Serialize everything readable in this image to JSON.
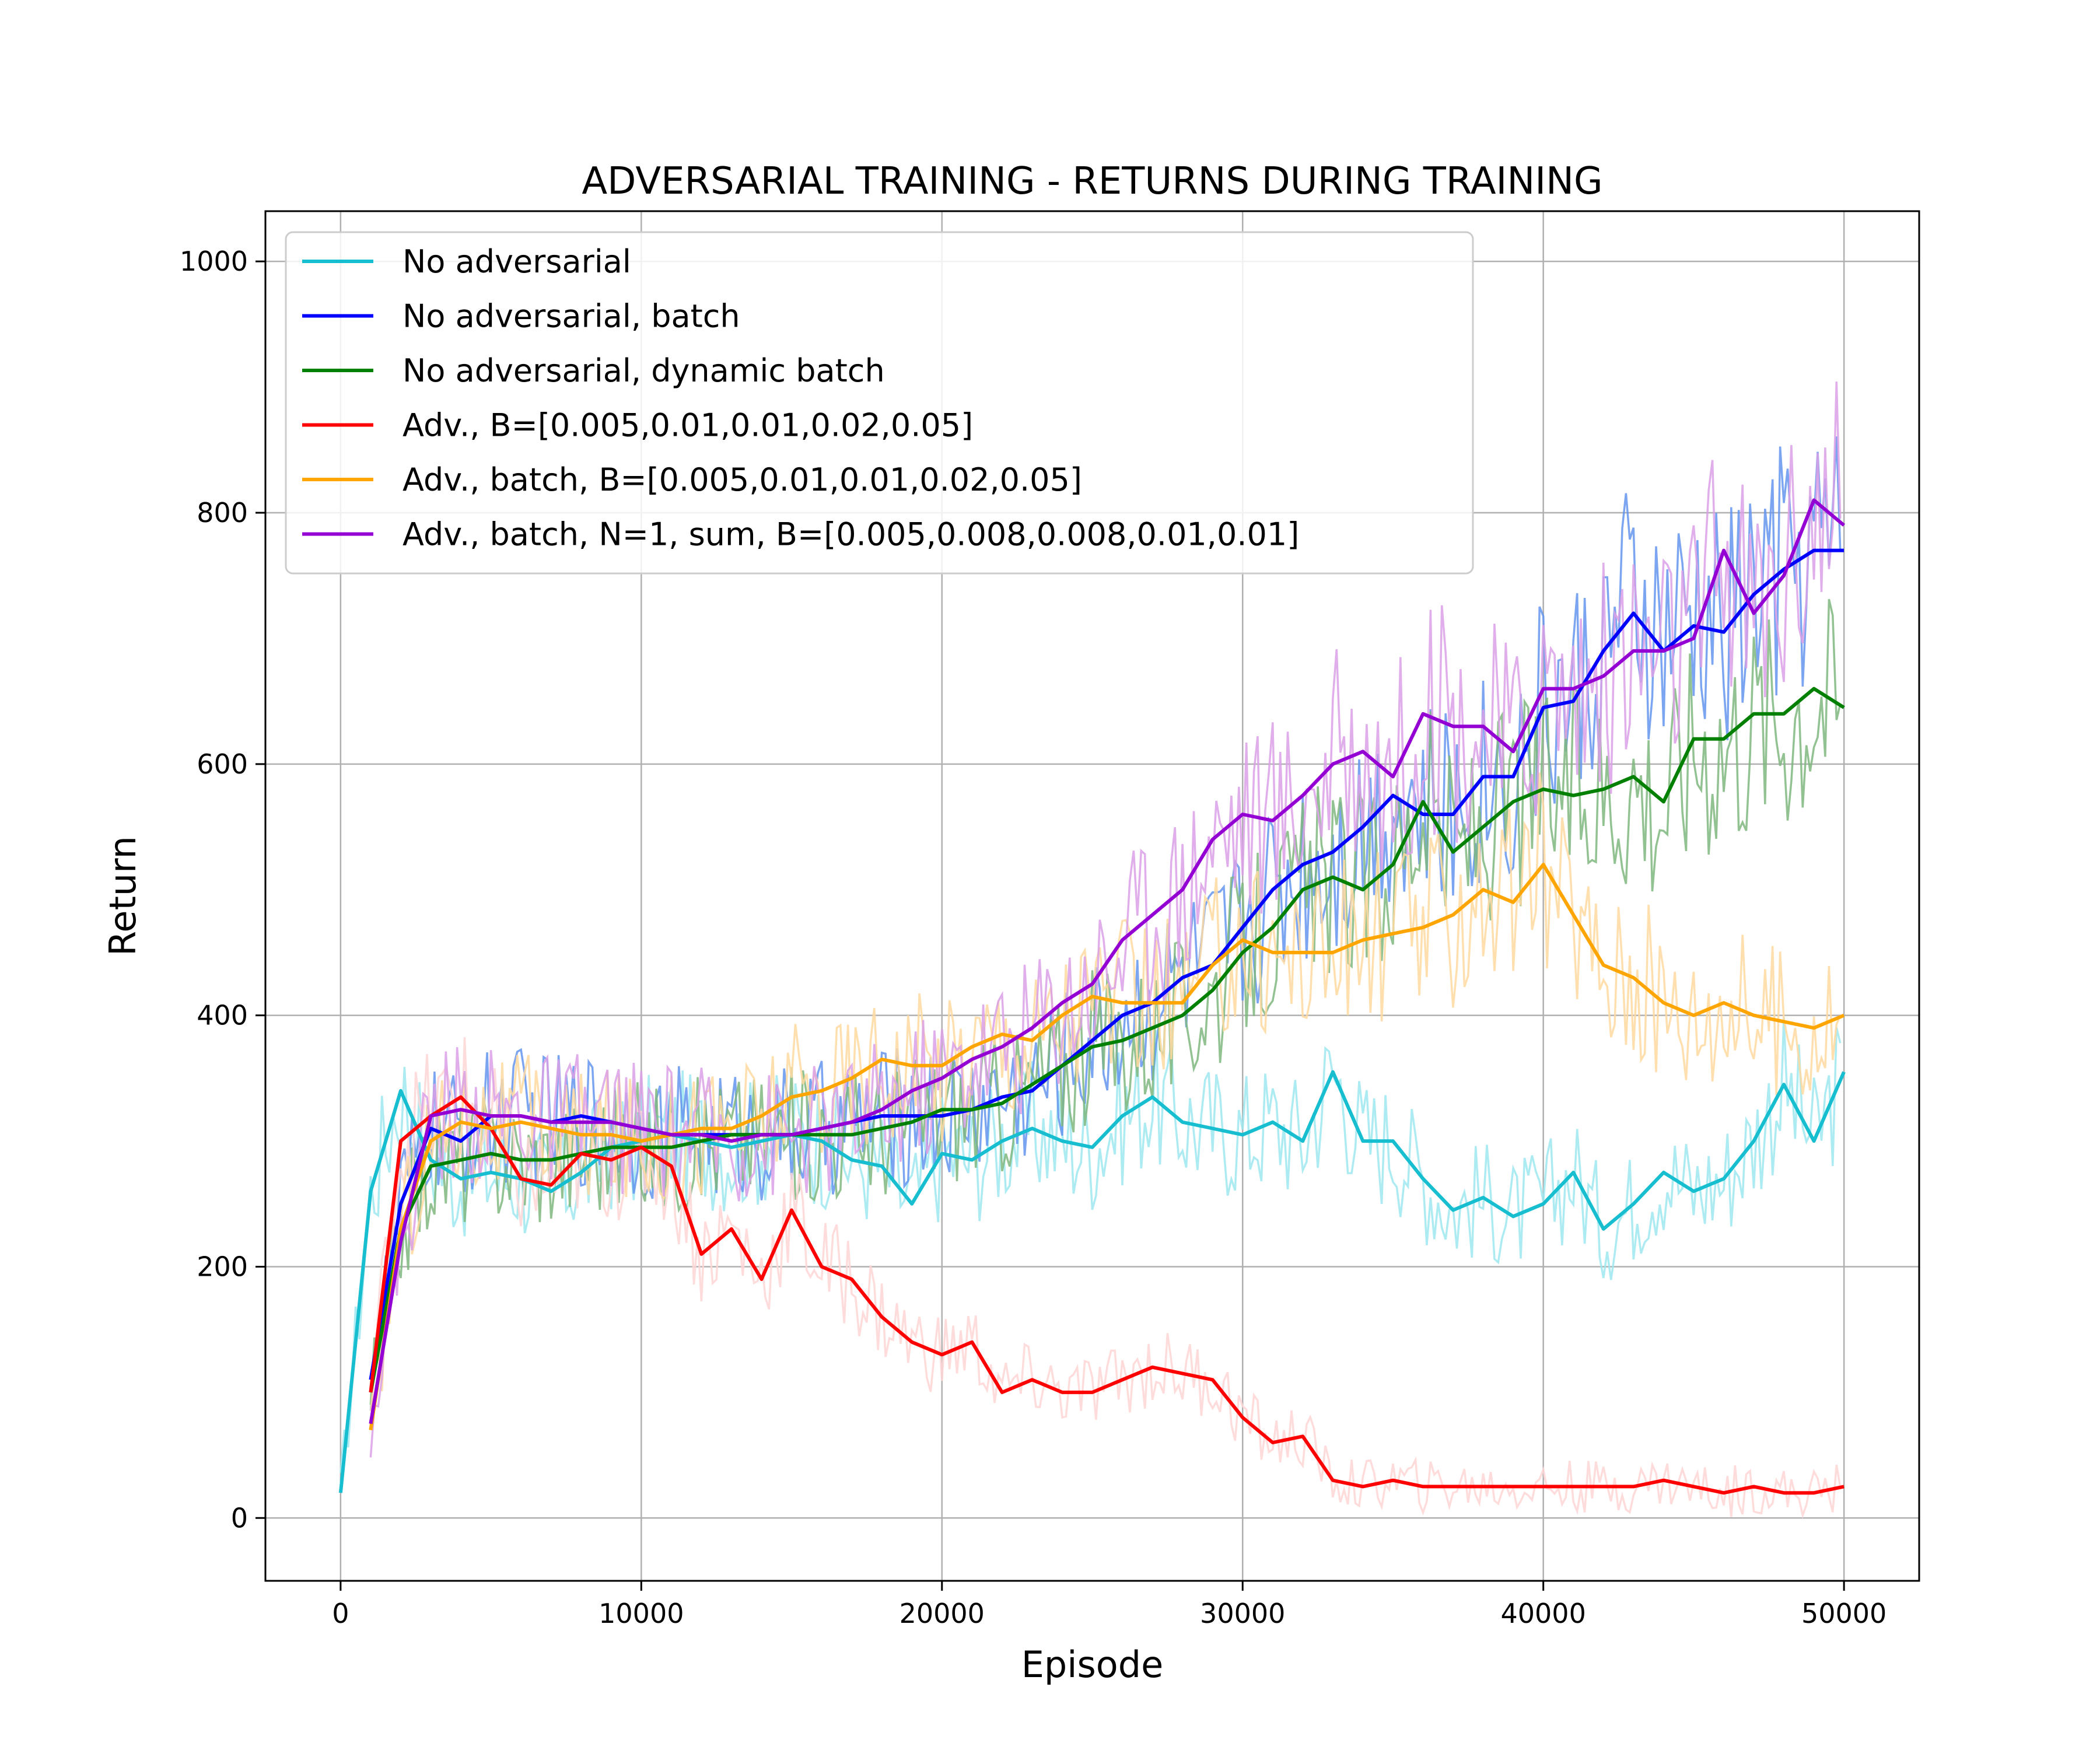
{
  "chart_data": {
    "type": "line",
    "title": "ADVERSARIAL TRAINING - RETURNS DURING TRAINING",
    "xlabel": "Episode",
    "ylabel": "Return",
    "xlim": [
      -2500,
      52500
    ],
    "ylim": [
      -50,
      1040
    ],
    "x_ticks": [
      0,
      10000,
      20000,
      30000,
      40000,
      50000
    ],
    "y_ticks": [
      0,
      200,
      400,
      600,
      800,
      1000
    ],
    "grid": true,
    "legend_position": "top-left",
    "series": [
      {
        "name": "No adversarial",
        "color": "#17becf",
        "raw_color": "#9ee8f0",
        "x": [
          0,
          1000,
          2000,
          3000,
          4000,
          5000,
          6000,
          7000,
          8000,
          9000,
          10000,
          11000,
          12000,
          13000,
          14000,
          15000,
          16000,
          17000,
          18000,
          19000,
          20000,
          21000,
          22000,
          23000,
          24000,
          25000,
          26000,
          27000,
          28000,
          29000,
          30000,
          31000,
          32000,
          33000,
          34000,
          35000,
          36000,
          37000,
          38000,
          39000,
          40000,
          41000,
          42000,
          43000,
          44000,
          45000,
          46000,
          47000,
          48000,
          49000,
          50000
        ],
        "values": [
          20,
          260,
          340,
          285,
          270,
          275,
          270,
          260,
          275,
          295,
          300,
          305,
          300,
          295,
          300,
          305,
          300,
          285,
          280,
          250,
          290,
          285,
          300,
          310,
          300,
          295,
          320,
          335,
          315,
          310,
          305,
          315,
          300,
          355,
          300,
          300,
          270,
          245,
          255,
          240,
          250,
          275,
          230,
          250,
          275,
          260,
          270,
          300,
          345,
          300,
          355
        ]
      },
      {
        "name": "No adversarial, batch",
        "color": "#0000ff",
        "raw_color": "#6495ed",
        "x": [
          1000,
          2000,
          3000,
          4000,
          5000,
          6000,
          7000,
          8000,
          9000,
          10000,
          11000,
          12000,
          13000,
          14000,
          15000,
          16000,
          17000,
          18000,
          19000,
          20000,
          21000,
          22000,
          23000,
          24000,
          25000,
          26000,
          27000,
          28000,
          29000,
          30000,
          31000,
          32000,
          33000,
          34000,
          35000,
          36000,
          37000,
          38000,
          39000,
          40000,
          41000,
          42000,
          43000,
          44000,
          45000,
          46000,
          47000,
          48000,
          49000,
          50000
        ],
        "values": [
          110,
          250,
          310,
          300,
          320,
          320,
          315,
          320,
          315,
          310,
          305,
          305,
          305,
          305,
          305,
          310,
          315,
          320,
          320,
          320,
          325,
          335,
          340,
          360,
          380,
          400,
          410,
          430,
          440,
          470,
          500,
          520,
          530,
          550,
          575,
          560,
          560,
          590,
          590,
          645,
          650,
          690,
          720,
          690,
          710,
          705,
          735,
          755,
          770,
          770
        ]
      },
      {
        "name": "No adversarial, dynamic batch",
        "color": "#008000",
        "raw_color": "#7fb77f",
        "x": [
          1000,
          2000,
          3000,
          4000,
          5000,
          6000,
          7000,
          8000,
          9000,
          10000,
          11000,
          12000,
          13000,
          14000,
          15000,
          16000,
          17000,
          18000,
          19000,
          20000,
          21000,
          22000,
          23000,
          24000,
          25000,
          26000,
          27000,
          28000,
          29000,
          30000,
          31000,
          32000,
          33000,
          34000,
          35000,
          36000,
          37000,
          38000,
          39000,
          40000,
          41000,
          42000,
          43000,
          44000,
          45000,
          46000,
          47000,
          48000,
          49000,
          50000
        ],
        "values": [
          100,
          230,
          280,
          285,
          290,
          285,
          285,
          290,
          295,
          295,
          295,
          300,
          305,
          305,
          305,
          305,
          305,
          310,
          315,
          325,
          325,
          330,
          345,
          360,
          375,
          380,
          390,
          400,
          420,
          450,
          470,
          500,
          510,
          500,
          520,
          570,
          530,
          550,
          570,
          580,
          575,
          580,
          590,
          570,
          620,
          620,
          640,
          640,
          660,
          645
        ]
      },
      {
        "name": "Adv., B=[0.005,0.01,0.01,0.02,0.05]",
        "color": "#ff0000",
        "raw_color": "#ffd6d6",
        "x": [
          1000,
          2000,
          3000,
          4000,
          5000,
          6000,
          7000,
          8000,
          9000,
          10000,
          11000,
          12000,
          13000,
          14000,
          15000,
          16000,
          17000,
          18000,
          19000,
          20000,
          21000,
          22000,
          23000,
          24000,
          25000,
          26000,
          27000,
          28000,
          29000,
          30000,
          31000,
          32000,
          33000,
          34000,
          35000,
          36000,
          37000,
          38000,
          39000,
          40000,
          41000,
          42000,
          43000,
          44000,
          45000,
          46000,
          47000,
          48000,
          49000,
          50000
        ],
        "values": [
          100,
          300,
          320,
          335,
          310,
          270,
          265,
          290,
          285,
          295,
          280,
          210,
          230,
          190,
          245,
          200,
          190,
          160,
          140,
          130,
          140,
          100,
          110,
          100,
          100,
          110,
          120,
          115,
          110,
          80,
          60,
          65,
          30,
          25,
          30,
          25,
          25,
          25,
          25,
          25,
          25,
          25,
          25,
          30,
          25,
          20,
          25,
          20,
          20,
          25
        ]
      },
      {
        "name": "Adv., batch, B=[0.005,0.01,0.01,0.02,0.05]",
        "color": "#ffa500",
        "raw_color": "#ffd9a0",
        "x": [
          1000,
          2000,
          3000,
          4000,
          5000,
          6000,
          7000,
          8000,
          9000,
          10000,
          11000,
          12000,
          13000,
          14000,
          15000,
          16000,
          17000,
          18000,
          19000,
          20000,
          21000,
          22000,
          23000,
          24000,
          25000,
          26000,
          27000,
          28000,
          29000,
          30000,
          31000,
          32000,
          33000,
          34000,
          35000,
          36000,
          37000,
          38000,
          39000,
          40000,
          41000,
          42000,
          43000,
          44000,
          45000,
          46000,
          47000,
          48000,
          49000,
          50000
        ],
        "values": [
          70,
          230,
          300,
          315,
          310,
          315,
          310,
          305,
          305,
          300,
          305,
          310,
          310,
          320,
          335,
          340,
          350,
          365,
          360,
          360,
          375,
          385,
          380,
          400,
          415,
          410,
          410,
          410,
          440,
          460,
          450,
          450,
          450,
          460,
          465,
          470,
          480,
          500,
          490,
          520,
          480,
          440,
          430,
          410,
          400,
          410,
          400,
          395,
          390,
          400
        ]
      },
      {
        "name": "Adv., batch, N=1, sum, B=[0.005,0.008,0.008,0.01,0.01]",
        "color": "#9400d3",
        "raw_color": "#daa0e6",
        "x": [
          1000,
          2000,
          3000,
          4000,
          5000,
          6000,
          7000,
          8000,
          9000,
          10000,
          11000,
          12000,
          13000,
          14000,
          15000,
          16000,
          17000,
          18000,
          19000,
          20000,
          21000,
          22000,
          23000,
          24000,
          25000,
          26000,
          27000,
          28000,
          29000,
          30000,
          31000,
          32000,
          33000,
          34000,
          35000,
          36000,
          37000,
          38000,
          39000,
          40000,
          41000,
          42000,
          43000,
          44000,
          45000,
          46000,
          47000,
          48000,
          49000,
          50000
        ],
        "values": [
          75,
          220,
          320,
          325,
          320,
          320,
          315,
          315,
          315,
          310,
          305,
          305,
          300,
          305,
          305,
          310,
          315,
          325,
          340,
          350,
          365,
          375,
          390,
          410,
          425,
          460,
          480,
          500,
          540,
          560,
          555,
          575,
          600,
          610,
          590,
          640,
          630,
          630,
          610,
          660,
          660,
          670,
          690,
          690,
          700,
          770,
          720,
          750,
          810,
          790
        ]
      }
    ]
  }
}
